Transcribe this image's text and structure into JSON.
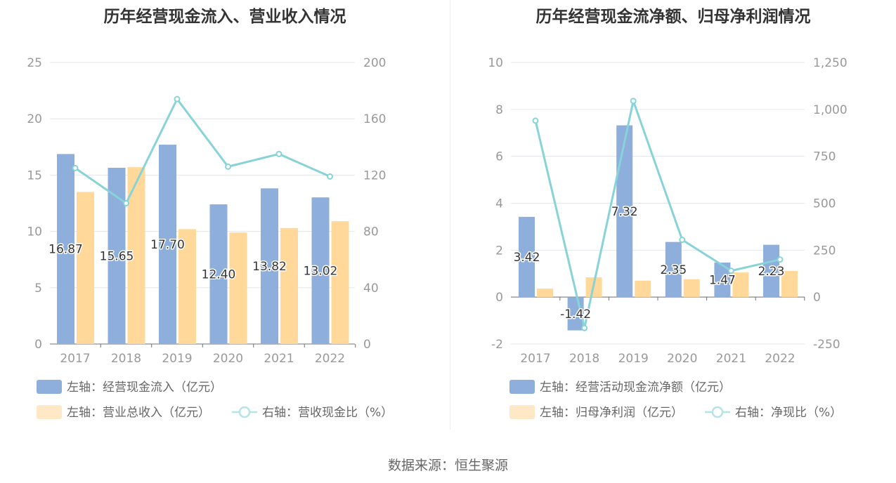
{
  "source": "数据来源：恒生聚源",
  "colors": {
    "bar1": "#8eaedb",
    "bar2": "#ffd89a",
    "line": "#87d3d8",
    "grid": "#e3e6ee",
    "axis": "#6e7079"
  },
  "chart_data": [
    {
      "type": "bar",
      "title": "历年经营现金流入、营业收入情况",
      "categories": [
        "2017",
        "2018",
        "2019",
        "2020",
        "2021",
        "2022"
      ],
      "y_left": {
        "min": 0,
        "max": 25,
        "ticks": [
          "0",
          "5",
          "10",
          "15",
          "20",
          "25"
        ]
      },
      "y_right": {
        "min": 0,
        "max": 200,
        "ticks": [
          "0",
          "40",
          "80",
          "120",
          "160",
          "200"
        ]
      },
      "series": [
        {
          "name": "左轴：经营现金流入（亿元）",
          "axis": "left",
          "kind": "bar",
          "values": [
            16.87,
            15.65,
            17.7,
            12.4,
            13.82,
            13.02
          ],
          "labels": [
            "16.87",
            "15.65",
            "17.70",
            "12.40",
            "13.82",
            "13.02"
          ]
        },
        {
          "name": "左轴：营业总收入（亿元）",
          "axis": "left",
          "kind": "bar",
          "values": [
            13.5,
            15.7,
            10.2,
            9.9,
            10.3,
            10.9
          ]
        },
        {
          "name": "右轴：营收现金比（%）",
          "axis": "right",
          "kind": "line",
          "values": [
            125,
            100,
            174,
            126,
            135,
            119
          ]
        }
      ]
    },
    {
      "type": "bar",
      "title": "历年经营现金流净额、归母净利润情况",
      "categories": [
        "2017",
        "2018",
        "2019",
        "2020",
        "2021",
        "2022"
      ],
      "y_left": {
        "min": -2,
        "max": 10,
        "ticks": [
          "-2",
          "0",
          "2",
          "4",
          "6",
          "8",
          "10"
        ]
      },
      "y_right": {
        "min": -250,
        "max": 1250,
        "ticks": [
          "-250",
          "0",
          "250",
          "500",
          "750",
          "1,000",
          "1,250"
        ]
      },
      "series": [
        {
          "name": "左轴：经营活动现金流净额（亿元）",
          "axis": "left",
          "kind": "bar",
          "values": [
            3.42,
            -1.42,
            7.32,
            2.35,
            1.47,
            2.23
          ],
          "labels": [
            "3.42",
            "-1.42",
            "7.32",
            "2.35",
            "1.47",
            "2.23"
          ]
        },
        {
          "name": "左轴：归母净利润（亿元）",
          "axis": "left",
          "kind": "bar",
          "values": [
            0.36,
            0.84,
            0.7,
            0.76,
            1.05,
            1.11
          ]
        },
        {
          "name": "右轴：净现比（%）",
          "axis": "right",
          "kind": "line",
          "values": [
            940,
            -165,
            1045,
            305,
            140,
            200
          ]
        }
      ]
    }
  ]
}
